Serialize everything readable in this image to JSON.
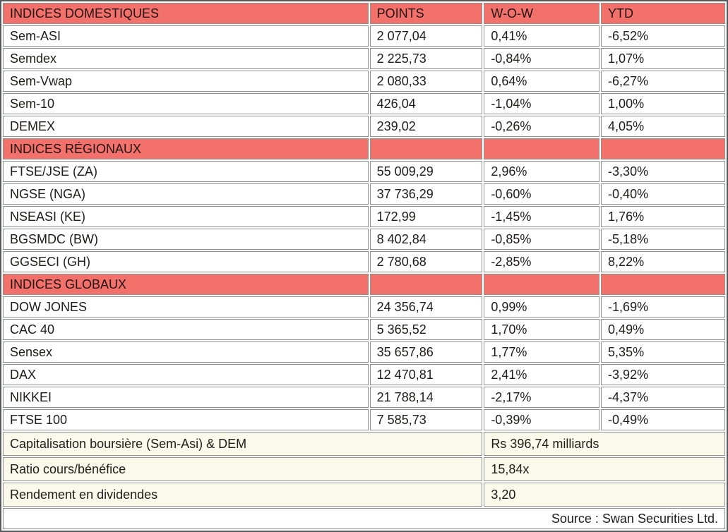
{
  "colors": {
    "section_header_bg": "#f2716a",
    "summary_row_bg": "#fbf9ea",
    "grid_line": "#8f9193",
    "outer_border": "#58595b",
    "text": "#1f1c1b"
  },
  "chart_data": {
    "type": "table",
    "columns": [
      "POINTS",
      "W-O-W",
      "YTD"
    ],
    "sections": [
      {
        "header": "INDICES DOMESTIQUES",
        "rows": [
          {
            "name": "Sem-ASI",
            "points": "2 077,04",
            "wow": "0,41%",
            "ytd": "-6,52%"
          },
          {
            "name": "Semdex",
            "points": "2 225,73",
            "wow": "-0,84%",
            "ytd": "1,07%"
          },
          {
            "name": "Sem-Vwap",
            "points": "2 080,33",
            "wow": "0,64%",
            "ytd": "-6,27%"
          },
          {
            "name": "Sem-10",
            "points": "426,04",
            "wow": "-1,04%",
            "ytd": "1,00%"
          },
          {
            "name": "DEMEX",
            "points": "239,02",
            "wow": "-0,26%",
            "ytd": "4,05%"
          }
        ]
      },
      {
        "header": "INDICES RÉGIONAUX",
        "rows": [
          {
            "name": "FTSE/JSE (ZA)",
            "points": "55 009,29",
            "wow": "2,96%",
            "ytd": "-3,30%"
          },
          {
            "name": "NGSE (NGA)",
            "points": "37 736,29",
            "wow": "-0,60%",
            "ytd": "-0,40%"
          },
          {
            "name": "NSEASI (KE)",
            "points": "172,99",
            "wow": "-1,45%",
            "ytd": "1,76%"
          },
          {
            "name": "BGSMDC (BW)",
            "points": "8 402,84",
            "wow": "-0,85%",
            "ytd": "-5,18%"
          },
          {
            "name": "GGSECI (GH)",
            "points": "2 780,68",
            "wow": "-2,85%",
            "ytd": "8,22%"
          }
        ]
      },
      {
        "header": "INDICES GLOBAUX",
        "rows": [
          {
            "name": "DOW JONES",
            "points": "24 356,74",
            "wow": "0,99%",
            "ytd": "-1,69%"
          },
          {
            "name": "CAC 40",
            "points": "5 365,52",
            "wow": "1,70%",
            "ytd": "0,49%"
          },
          {
            "name": "Sensex",
            "points": "35 657,86",
            "wow": "1,77%",
            "ytd": "5,35%"
          },
          {
            "name": "DAX",
            "points": "12 470,81",
            "wow": "2,41%",
            "ytd": "-3,92%"
          },
          {
            "name": "NIKKEI",
            "points": "21 788,14",
            "wow": "-2,17%",
            "ytd": "-4,37%"
          },
          {
            "name": "FTSE 100",
            "points": "7 585,73",
            "wow": "-0,39%",
            "ytd": "-0,49%"
          }
        ]
      }
    ],
    "summary_rows": [
      {
        "label": "Capitalisation boursière (Sem-Asi) & DEM",
        "value": "Rs 396,74 milliards"
      },
      {
        "label": "Ratio cours/bénéfice",
        "value": "15,84x"
      },
      {
        "label": "Rendement en dividendes",
        "value": "3,20"
      }
    ],
    "source": "Source : Swan Securities Ltd."
  }
}
